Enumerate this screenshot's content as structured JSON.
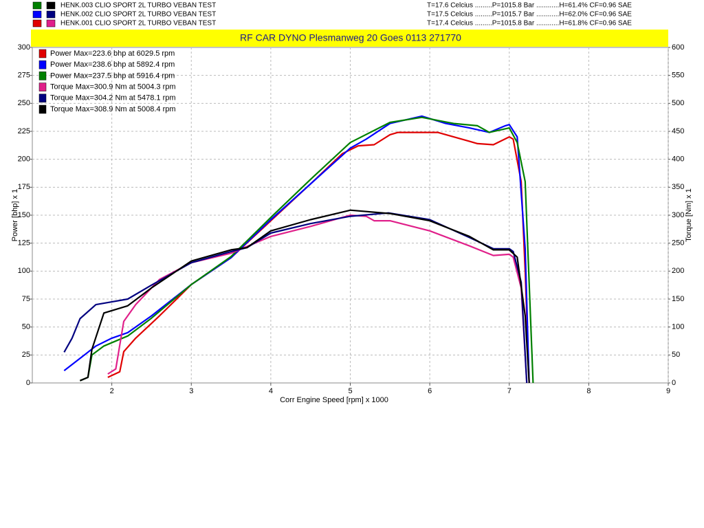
{
  "header": {
    "runs": [
      {
        "label": "HENK.003 CLIO SPORT   2L  TURBO VEBAN TEST",
        "info": "T=17.6 Celcius .........P=1015.8 Bar ............H=61.4% CF=0.96 SAE"
      },
      {
        "label": "HENK.002 CLIO SPORT   2L  TURBO VEBAN TEST",
        "info": "T=17.5 Celcius .........P=1015.7 Bar ............H=62.0% CF=0.96 SAE"
      },
      {
        "label": "HENK.001 CLIO SPORT   2L  TURBO VEBAN TEST",
        "info": "T=17.4 Celcius .........P=1015.8 Bar ............H=61.8% CF=0.96 SAE"
      }
    ]
  },
  "chart_data": {
    "type": "line",
    "title": "RF CAR DYNO  Plesmanweg 20 Goes  0113 271770",
    "x_label": "Corr Engine Speed [rpm] x 1000",
    "y_label": "Power [bhp] x 1",
    "y2_label": "Torque [Nm] x 1",
    "xlim": [
      1,
      9
    ],
    "xticks": [
      2,
      3,
      4,
      5,
      6,
      7,
      8,
      9
    ],
    "ylim": [
      0,
      300
    ],
    "yticks": [
      0,
      25,
      50,
      75,
      100,
      125,
      150,
      175,
      200,
      225,
      250,
      275,
      300
    ],
    "y2lim": [
      0,
      600
    ],
    "y2ticks": [
      0,
      50,
      100,
      150,
      200,
      250,
      300,
      350,
      400,
      450,
      500,
      550,
      600
    ],
    "grid": true,
    "series": [
      {
        "name": "Power  Max=223.6 bhp at 6029.5 rpm",
        "color": "#e00000",
        "x": [
          1.95,
          2.1,
          2.15,
          2.3,
          2.6,
          3,
          3.5,
          4,
          4.5,
          4.9,
          5.1,
          5.3,
          5.5,
          5.6,
          6.1,
          6.5,
          6.6,
          6.8,
          7.0,
          7.05,
          7.15,
          7.2,
          7.25
        ],
        "values": [
          5,
          10,
          28,
          40,
          60,
          88,
          112,
          145,
          178,
          205,
          212,
          213,
          222,
          224,
          224,
          216,
          214,
          213,
          220,
          218,
          180,
          100,
          0
        ]
      },
      {
        "name": "Power  Max=238.6 bhp at 5892.4 rpm",
        "color": "#0000ff",
        "x": [
          1.4,
          1.6,
          1.8,
          2,
          2.2,
          2.5,
          3,
          3.5,
          4,
          4.5,
          5,
          5.2,
          5.5,
          5.9,
          6.2,
          6.5,
          6.75,
          6.95,
          7.0,
          7.1,
          7.2,
          7.25
        ],
        "values": [
          11,
          22,
          33,
          40,
          45,
          60,
          88,
          112,
          146,
          178,
          210,
          218,
          232,
          238.6,
          232,
          228,
          224,
          230,
          231,
          220,
          120,
          0
        ]
      },
      {
        "name": "Power  Max=237.5 bhp at 5916.4 rpm",
        "color": "#008000",
        "x": [
          1.6,
          1.7,
          1.75,
          1.9,
          2.2,
          2.5,
          3,
          3.5,
          4,
          4.5,
          5,
          5.5,
          5.9,
          6.3,
          6.6,
          6.75,
          7.0,
          7.1,
          7.2,
          7.3
        ],
        "values": [
          2,
          5,
          25,
          33,
          42,
          58,
          88,
          113,
          148,
          182,
          215,
          233,
          237.5,
          232,
          230,
          224,
          228,
          215,
          180,
          0
        ]
      },
      {
        "name": "Torque  Max=300.9 Nm at 5004.3 rpm",
        "color": "#e0208a",
        "axis": "y2",
        "x": [
          1.95,
          2.05,
          2.15,
          2.3,
          2.6,
          3,
          3.5,
          4,
          4.5,
          5,
          5.2,
          5.3,
          5.5,
          6,
          6.5,
          6.8,
          7.0,
          7.05,
          7.15,
          7.22
        ],
        "values": [
          16,
          25,
          110,
          140,
          185,
          215,
          232,
          262,
          280,
          300,
          298,
          290,
          290,
          272,
          245,
          228,
          230,
          225,
          170,
          0
        ]
      },
      {
        "name": "Torque  Max=304.2 Nm at 5478.1 rpm",
        "color": "#000080",
        "axis": "y2",
        "x": [
          1.4,
          1.5,
          1.6,
          1.8,
          2,
          2.2,
          2.5,
          3,
          3.5,
          3.7,
          4,
          4.5,
          5,
          5.48,
          6,
          6.5,
          6.8,
          7.0,
          7.05,
          7.15,
          7.22
        ],
        "values": [
          55,
          80,
          115,
          140,
          145,
          150,
          175,
          215,
          235,
          242,
          268,
          285,
          298,
          304,
          292,
          260,
          240,
          240,
          235,
          180,
          0
        ]
      },
      {
        "name": "Torque  Max=308.9 Nm at 5008.4 rpm",
        "color": "#000000",
        "axis": "y2",
        "x": [
          1.6,
          1.7,
          1.75,
          1.9,
          2.2,
          2.5,
          3,
          3.5,
          3.7,
          4,
          4.5,
          5.0,
          5.5,
          6,
          6.5,
          6.8,
          7.0,
          7.1,
          7.2,
          7.25
        ],
        "values": [
          4,
          10,
          60,
          125,
          138,
          170,
          218,
          238,
          242,
          272,
          292,
          309,
          303,
          290,
          262,
          238,
          238,
          225,
          120,
          0
        ]
      }
    ]
  }
}
